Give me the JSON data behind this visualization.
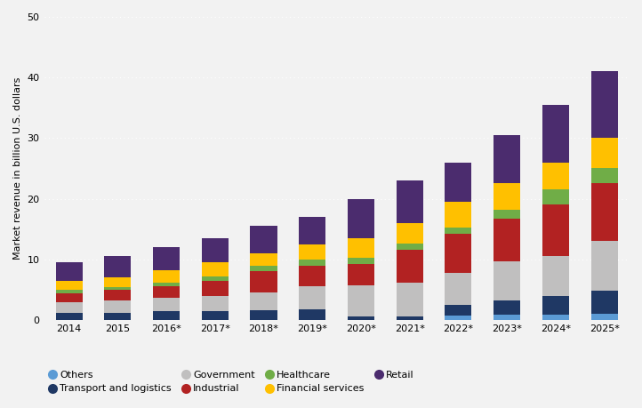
{
  "years": [
    "2014",
    "2015",
    "2016*",
    "2017*",
    "2018*",
    "2019*",
    "2020*",
    "2021*",
    "2022*",
    "2023*",
    "2024*",
    "2025*"
  ],
  "stack_order": [
    "Others",
    "Transport and logistics",
    "Government",
    "Industrial",
    "Healthcare",
    "Financial services",
    "Retail"
  ],
  "segments": {
    "Others": {
      "color": "#5b9bd5",
      "values": [
        0.0,
        0.0,
        0.0,
        0.0,
        0.0,
        0.0,
        0.0,
        0.0,
        0.7,
        0.9,
        0.8,
        1.0
      ]
    },
    "Transport and logistics": {
      "color": "#1f3864",
      "values": [
        1.1,
        1.2,
        1.4,
        1.5,
        1.6,
        1.8,
        0.5,
        0.6,
        1.8,
        2.3,
        3.2,
        3.8
      ]
    },
    "Government": {
      "color": "#c0bfbf",
      "values": [
        1.8,
        2.0,
        2.2,
        2.5,
        3.0,
        3.7,
        5.2,
        5.5,
        5.2,
        6.5,
        6.5,
        8.2
      ]
    },
    "Industrial": {
      "color": "#b22222",
      "values": [
        1.5,
        1.7,
        2.0,
        2.5,
        3.5,
        3.5,
        3.5,
        5.5,
        6.5,
        7.0,
        8.5,
        9.5
      ]
    },
    "Healthcare": {
      "color": "#70ad47",
      "values": [
        0.5,
        0.5,
        0.5,
        0.7,
        0.9,
        1.0,
        1.0,
        1.0,
        1.0,
        1.5,
        2.5,
        2.5
      ]
    },
    "Financial services": {
      "color": "#ffc000",
      "values": [
        1.6,
        1.6,
        2.1,
        2.3,
        2.0,
        2.5,
        3.3,
        3.4,
        4.3,
        4.3,
        4.5,
        5.0
      ]
    },
    "Retail": {
      "color": "#4b2c6e",
      "values": [
        3.0,
        3.5,
        3.8,
        4.0,
        4.5,
        4.5,
        6.5,
        7.0,
        6.5,
        8.0,
        9.5,
        11.0
      ]
    }
  },
  "ylabel": "Market revenue in billion U.S. dollars",
  "ylim": [
    0,
    50
  ],
  "yticks": [
    0,
    10,
    20,
    30,
    40,
    50
  ],
  "bg_color": "#f2f2f2",
  "plot_bg_color": "#f2f2f2",
  "grid_color": "#ffffff",
  "bar_width": 0.55,
  "legend_row1": [
    "Others",
    "Transport and logistics",
    "Government",
    "Industrial"
  ],
  "legend_row2": [
    "Healthcare",
    "Financial services",
    "Retail"
  ]
}
